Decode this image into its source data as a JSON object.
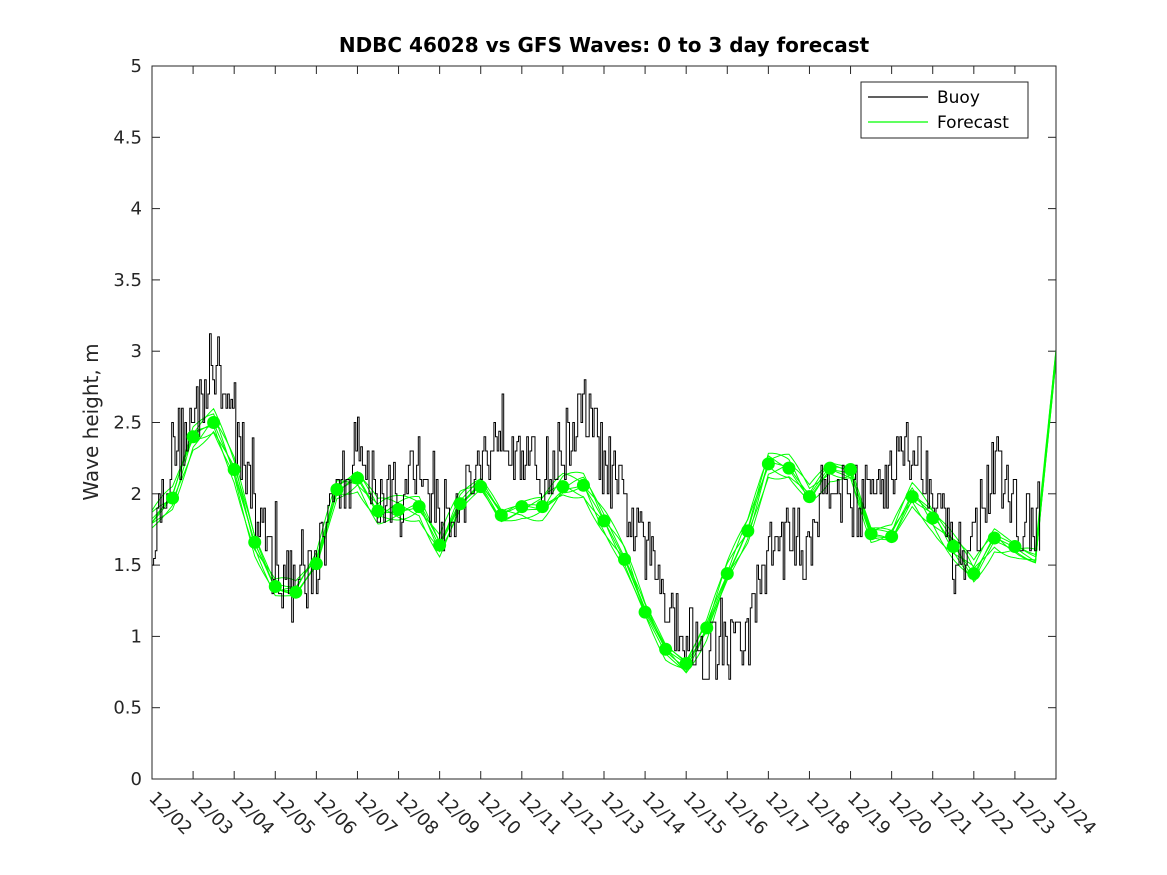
{
  "chart_data": {
    "type": "line",
    "title": "NDBC 46028 vs GFS Waves: 0 to 3 day forecast",
    "xlabel": "",
    "ylabel": "Wave height, m",
    "xlim": [
      0,
      22
    ],
    "ylim": [
      0,
      5
    ],
    "x_tick_labels": [
      "12/02",
      "12/03",
      "12/04",
      "12/05",
      "12/06",
      "12/07",
      "12/08",
      "12/09",
      "12/10",
      "12/11",
      "12/12",
      "12/13",
      "12/14",
      "12/15",
      "12/16",
      "12/17",
      "12/18",
      "12/19",
      "12/20",
      "12/21",
      "12/22",
      "12/23",
      "12/24"
    ],
    "y_ticks": [
      0,
      0.5,
      1,
      1.5,
      2,
      2.5,
      3,
      3.5,
      4,
      4.5,
      5
    ],
    "y_tick_labels": [
      "0",
      "0.5",
      "1",
      "1.5",
      "2",
      "2.5",
      "3",
      "3.5",
      "4",
      "4.5",
      "5"
    ],
    "legend": {
      "position": "top-right",
      "entries": [
        {
          "label": "Buoy",
          "color": "#000000"
        },
        {
          "label": "Forecast",
          "color": "#00ff00"
        }
      ]
    },
    "series": [
      {
        "name": "Buoy",
        "color": "#000000",
        "x": [
          0,
          0.5,
          1,
          1.5,
          2,
          2.5,
          3,
          3.5,
          4,
          4.5,
          5,
          5.5,
          6,
          6.5,
          7,
          7.5,
          8,
          8.5,
          9,
          9.5,
          10,
          10.5,
          11,
          11.5,
          12,
          12.5,
          13,
          13.5,
          14,
          14.5,
          15,
          15.5,
          16,
          16.5,
          17,
          17.5,
          18,
          18.5,
          19,
          19.5,
          20,
          20.5,
          21,
          21.5
        ],
        "y": [
          1.7,
          2.3,
          2.5,
          2.9,
          2.5,
          1.9,
          1.5,
          1.3,
          1.5,
          2.0,
          2.3,
          2.0,
          1.9,
          2.2,
          1.8,
          2.0,
          2.2,
          2.5,
          2.3,
          2.1,
          2.3,
          2.6,
          2.2,
          1.9,
          1.6,
          1.3,
          1.0,
          0.9,
          0.9,
          1.0,
          1.6,
          1.7,
          1.6,
          2.2,
          1.9,
          2.0,
          2.2,
          2.3,
          2.1,
          1.5,
          1.7,
          2.2,
          1.9,
          1.7
        ]
      },
      {
        "name": "Forecast",
        "color": "#00ff00",
        "x": [
          0,
          0.5,
          1,
          1.5,
          2,
          2.5,
          3,
          3.5,
          4,
          4.5,
          5,
          5.5,
          6,
          6.5,
          7,
          7.5,
          8,
          8.5,
          9,
          9.5,
          10,
          10.5,
          11,
          11.5,
          12,
          12.5,
          13,
          13.5,
          14,
          14.5,
          15,
          15.5,
          16,
          16.5,
          17,
          17.5,
          18,
          18.5,
          19,
          19.5,
          20,
          20.5,
          21,
          21.5,
          22
        ],
        "y": [
          1.8,
          1.97,
          2.4,
          2.5,
          2.17,
          1.66,
          1.35,
          1.31,
          1.51,
          2.03,
          2.11,
          1.88,
          1.89,
          1.91,
          1.64,
          1.93,
          2.05,
          1.85,
          1.91,
          1.91,
          2.05,
          2.06,
          1.81,
          1.54,
          1.17,
          0.91,
          0.81,
          1.06,
          1.44,
          1.74,
          2.21,
          2.18,
          1.98,
          2.18,
          2.17,
          1.72,
          1.7,
          1.98,
          1.83,
          1.63,
          1.44,
          1.69,
          1.63,
          1.55,
          2.95
        ]
      }
    ],
    "forecast_markers": {
      "x": [
        0.5,
        1,
        1.5,
        2,
        2.5,
        3,
        3.5,
        4,
        4.5,
        5,
        5.5,
        6,
        6.5,
        7,
        7.5,
        8,
        8.5,
        9,
        9.5,
        10,
        10.5,
        11,
        11.5,
        12,
        12.5,
        13,
        13.5,
        14,
        14.5,
        15,
        15.5,
        16,
        16.5,
        17,
        17.5,
        18,
        18.5,
        19,
        19.5,
        20,
        20.5,
        21
      ],
      "y": [
        1.97,
        2.4,
        2.5,
        2.17,
        1.66,
        1.35,
        1.31,
        1.51,
        2.03,
        2.11,
        1.88,
        1.89,
        1.91,
        1.64,
        1.93,
        2.05,
        1.85,
        1.91,
        1.91,
        2.05,
        2.06,
        1.81,
        1.54,
        1.17,
        0.91,
        0.81,
        1.06,
        1.44,
        1.74,
        2.21,
        2.18,
        1.98,
        2.18,
        2.17,
        1.72,
        1.7,
        1.98,
        1.83,
        1.63,
        1.44,
        1.69,
        1.63
      ]
    }
  }
}
